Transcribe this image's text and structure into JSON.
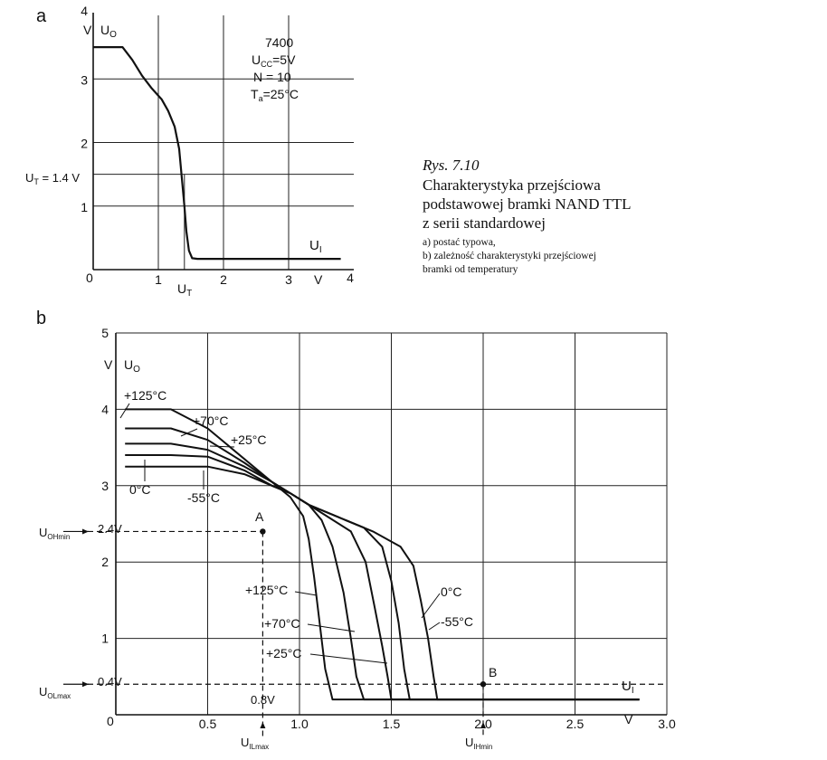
{
  "caption": {
    "title": "Rys. 7.10",
    "lines": [
      "Charakterystyka przejściowa",
      "podstawowej bramki NAND TTL",
      "z serii standardowej"
    ],
    "notes": [
      "a) postać typowa,",
      "b) zależność charakterystyki przejściowej",
      "bramki od temperatury"
    ]
  },
  "chart_data": [
    {
      "panel_label": "a",
      "type": "line",
      "xlim": [
        0,
        4
      ],
      "ylim": [
        0,
        4
      ],
      "x_ticks": [
        "1",
        "2",
        "3",
        "4"
      ],
      "x_unit": "V",
      "x_origin_label": "0",
      "y_ticks": [
        "1",
        "2",
        "3",
        "4"
      ],
      "y_unit": "V",
      "y_axis_label": "U_O",
      "x_axis_label": "U_I",
      "threshold_label": "U_T = 1.4 V",
      "threshold_x_label": "U_T",
      "threshold": 1.4,
      "parameters": [
        "7400",
        "U_CC = 5 V",
        "N = 10",
        "T_a = 25°C"
      ],
      "grid": true,
      "series": [
        {
          "x": [
            0,
            0.45,
            0.6,
            0.75,
            0.9,
            1.05,
            1.15,
            1.25,
            1.32,
            1.36,
            1.4,
            1.43,
            1.47,
            1.52,
            1.6,
            3.8
          ],
          "y": [
            3.5,
            3.5,
            3.3,
            3.05,
            2.85,
            2.68,
            2.5,
            2.25,
            1.9,
            1.45,
            1.0,
            0.6,
            0.3,
            0.18,
            0.17,
            0.17
          ]
        }
      ]
    },
    {
      "panel_label": "b",
      "type": "line",
      "xlim": [
        0,
        3
      ],
      "ylim": [
        0,
        5
      ],
      "x_ticks": [
        "0.5",
        "1.0",
        "1.5",
        "2.0",
        "2.5",
        "3.0"
      ],
      "x_unit": "V",
      "x_origin_label": "0",
      "y_ticks": [
        "1",
        "2",
        "3",
        "4",
        "5"
      ],
      "y_unit": "V",
      "y_axis_label": "U_O",
      "x_axis_label": "U_I",
      "grid": true,
      "annotations": {
        "U_OHmin": {
          "name": "U_OHmin",
          "value_label": "2.4V",
          "value": 2.4
        },
        "U_OLmax": {
          "name": "U_OLmax",
          "value_label": "0.4V",
          "value": 0.4
        },
        "U_ILmax": {
          "name": "U_ILmax",
          "value_label": "0.8V",
          "value": 0.8
        },
        "U_IHmin": {
          "name": "U_IHmin",
          "value": 2.0
        },
        "point_A": {
          "label": "A",
          "x": 0.8,
          "y": 2.4
        },
        "point_B": {
          "label": "B",
          "x": 2.0,
          "y": 0.4
        }
      },
      "series": [
        {
          "name": "+125°C",
          "x": [
            0.05,
            0.3,
            0.5,
            0.7,
            0.85,
            0.95,
            1.02,
            1.05,
            1.08,
            1.11,
            1.14,
            1.18,
            2.85
          ],
          "y": [
            4.0,
            4.0,
            3.75,
            3.35,
            3.05,
            2.85,
            2.6,
            2.3,
            1.8,
            1.2,
            0.6,
            0.2,
            0.2
          ]
        },
        {
          "name": "+70°C",
          "x": [
            0.05,
            0.3,
            0.5,
            0.7,
            0.85,
            0.95,
            1.05,
            1.12,
            1.18,
            1.24,
            1.28,
            1.31,
            1.35,
            2.85
          ],
          "y": [
            3.75,
            3.75,
            3.6,
            3.3,
            3.05,
            2.9,
            2.75,
            2.55,
            2.2,
            1.6,
            1.0,
            0.5,
            0.2,
            0.2
          ]
        },
        {
          "name": "+25°C",
          "x": [
            0.05,
            0.3,
            0.5,
            0.7,
            0.85,
            0.95,
            1.05,
            1.15,
            1.28,
            1.36,
            1.41,
            1.45,
            1.48,
            1.5,
            2.85
          ],
          "y": [
            3.55,
            3.55,
            3.47,
            3.25,
            3.05,
            2.9,
            2.75,
            2.6,
            2.4,
            2.0,
            1.4,
            0.9,
            0.5,
            0.2,
            0.2
          ]
        },
        {
          "name": "0°C",
          "x": [
            0.05,
            0.3,
            0.5,
            0.7,
            0.85,
            0.95,
            1.05,
            1.2,
            1.35,
            1.45,
            1.5,
            1.54,
            1.57,
            1.6,
            2.85
          ],
          "y": [
            3.4,
            3.4,
            3.38,
            3.2,
            3.0,
            2.9,
            2.75,
            2.6,
            2.45,
            2.2,
            1.75,
            1.2,
            0.6,
            0.2,
            0.2
          ]
        },
        {
          "name": "-55°C",
          "x": [
            0.05,
            0.3,
            0.5,
            0.7,
            0.85,
            0.95,
            1.05,
            1.2,
            1.4,
            1.55,
            1.62,
            1.66,
            1.7,
            1.73,
            1.75,
            2.85
          ],
          "y": [
            3.25,
            3.25,
            3.25,
            3.15,
            3.0,
            2.9,
            2.75,
            2.6,
            2.4,
            2.2,
            1.95,
            1.5,
            1.0,
            0.5,
            0.2,
            0.2
          ]
        }
      ]
    }
  ]
}
